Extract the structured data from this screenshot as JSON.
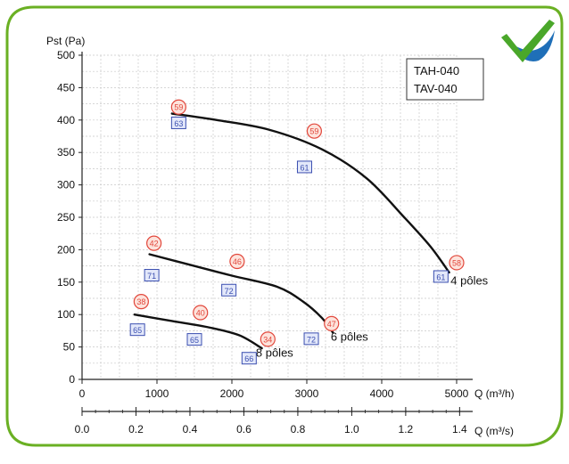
{
  "colors": {
    "border": "#6ab023",
    "grid": "#c9c9c9",
    "curve": "#111111",
    "noise_marker": "#e2483c",
    "noise_marker_fill": "#fde3dc",
    "efficiency_marker": "#3b4fb0",
    "efficiency_marker_fill": "#e3e8fa",
    "logo_green": "#4aa72a",
    "logo_blue": "#1f6fb8"
  },
  "icons": {
    "badge": "checkmark-badge-icon"
  },
  "chart_data": {
    "type": "line",
    "title": "",
    "model_labels": [
      "TAH-040",
      "TAV-040"
    ],
    "ylabel": "Pst (Pa)",
    "xlabel": "Q (m³/h)",
    "x2label": "Q (m³/s)",
    "xlim": [
      0,
      5000
    ],
    "ylim": [
      0,
      500
    ],
    "grid": true,
    "x_ticks": [
      0,
      1000,
      2000,
      3000,
      4000,
      5000
    ],
    "x_tick_labels": [
      "0",
      "1000",
      "2000",
      "3000",
      "4000",
      "5000"
    ],
    "y_ticks": [
      0,
      50,
      100,
      150,
      200,
      250,
      300,
      350,
      400,
      450,
      500
    ],
    "y_tick_labels": [
      "0",
      "50",
      "100",
      "150",
      "200",
      "250",
      "300",
      "350",
      "400",
      "450",
      "500"
    ],
    "x2_ticks": [
      0,
      0.2,
      0.4,
      0.6,
      0.8,
      1.0,
      1.2,
      1.4
    ],
    "x2_tick_labels": [
      "0.0",
      "0.2",
      "0.4",
      "0.6",
      "0.8",
      "1.0",
      "1.2",
      "1.4"
    ],
    "x2_unit_per_x": 0.00027778,
    "series": [
      {
        "name": "4 pôles",
        "x": [
          1200,
          1800,
          2500,
          3200,
          3800,
          4300,
          4650,
          4900
        ],
        "y": [
          410,
          400,
          385,
          355,
          310,
          250,
          205,
          165
        ],
        "label_at": [
          4920,
          146
        ]
      },
      {
        "name": "6 pôles",
        "x": [
          900,
          1400,
          2000,
          2600,
          2950,
          3200,
          3350
        ],
        "y": [
          193,
          178,
          160,
          143,
          120,
          95,
          72
        ],
        "label_at": [
          3320,
          60
        ]
      },
      {
        "name": "8 pôles",
        "x": [
          700,
          1200,
          1700,
          2100,
          2400
        ],
        "y": [
          100,
          90,
          80,
          68,
          48
        ],
        "label_at": [
          2320,
          35
        ]
      }
    ],
    "noise_markers": [
      {
        "label": "59",
        "x": 1290,
        "y": 420
      },
      {
        "label": "59",
        "x": 3100,
        "y": 383
      },
      {
        "label": "58",
        "x": 5000,
        "y": 180
      },
      {
        "label": "42",
        "x": 960,
        "y": 210
      },
      {
        "label": "46",
        "x": 2070,
        "y": 182
      },
      {
        "label": "47",
        "x": 3330,
        "y": 86
      },
      {
        "label": "38",
        "x": 790,
        "y": 120
      },
      {
        "label": "40",
        "x": 1580,
        "y": 103
      },
      {
        "label": "34",
        "x": 2480,
        "y": 62
      }
    ],
    "efficiency_markers": [
      {
        "label": "63",
        "x": 1290,
        "y": 395
      },
      {
        "label": "61",
        "x": 2970,
        "y": 327
      },
      {
        "label": "61",
        "x": 4790,
        "y": 158
      },
      {
        "label": "71",
        "x": 930,
        "y": 160
      },
      {
        "label": "72",
        "x": 1960,
        "y": 137
      },
      {
        "label": "72",
        "x": 3060,
        "y": 62
      },
      {
        "label": "65",
        "x": 740,
        "y": 76
      },
      {
        "label": "65",
        "x": 1500,
        "y": 61
      },
      {
        "label": "66",
        "x": 2230,
        "y": 32
      }
    ]
  }
}
